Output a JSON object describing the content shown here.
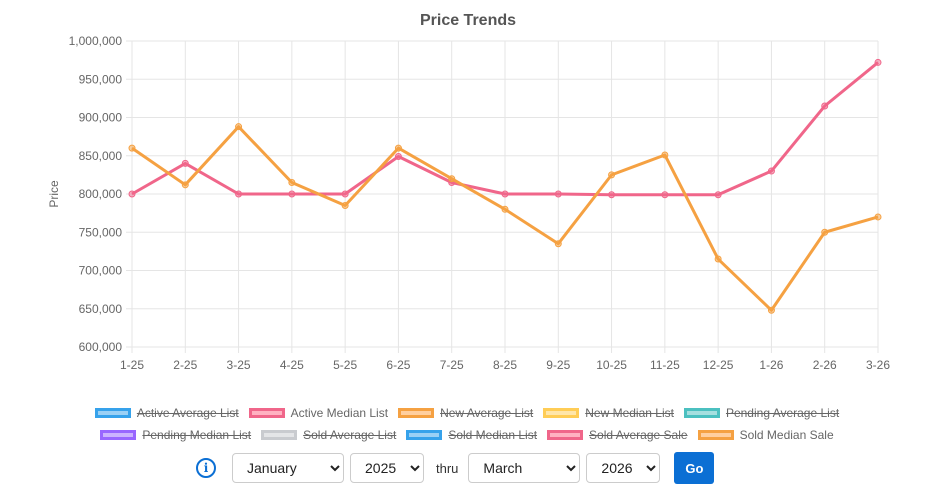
{
  "chart_data": {
    "type": "line",
    "title": "Price Trends",
    "ylabel": "Price",
    "xlabel": "",
    "ylim": [
      600000,
      1000000
    ],
    "yticks": [
      "1,000,000",
      "950,000",
      "900,000",
      "850,000",
      "800,000",
      "750,000",
      "700,000",
      "650,000",
      "600,000"
    ],
    "categories": [
      "1-25",
      "2-25",
      "3-25",
      "4-25",
      "5-25",
      "6-25",
      "7-25",
      "8-25",
      "9-25",
      "10-25",
      "11-25",
      "12-25",
      "1-26",
      "2-26",
      "3-26"
    ],
    "grid": true,
    "legend_position": "bottom",
    "series": [
      {
        "name": "Active Median List",
        "color": "#f0668a",
        "values": [
          800000,
          840000,
          800000,
          800000,
          800000,
          849000,
          815000,
          800000,
          800000,
          799000,
          799000,
          799000,
          830000,
          915000,
          972000
        ]
      },
      {
        "name": "Sold Median Sale",
        "color": "#f5a142",
        "values": [
          860000,
          812000,
          888000,
          815000,
          785000,
          860000,
          820000,
          780000,
          735000,
          825000,
          851000,
          715000,
          648000,
          750000,
          770000
        ]
      }
    ]
  },
  "legend": {
    "row1": [
      {
        "label": "Active Average List",
        "color": "#36a2eb",
        "fill": "#9ad0f5",
        "hidden": true
      },
      {
        "label": "Active Median List",
        "color": "#f0668a",
        "fill": "#ffb1c1",
        "hidden": false
      },
      {
        "label": "New Average List",
        "color": "#f5a142",
        "fill": "#ffcf9f",
        "hidden": true
      },
      {
        "label": "New Median List",
        "color": "#ffcd56",
        "fill": "#ffe6aa",
        "hidden": true
      },
      {
        "label": "Pending Average List",
        "color": "#4bc0c0",
        "fill": "#a5dfdf",
        "hidden": true
      }
    ],
    "row2": [
      {
        "label": "Pending Median List",
        "color": "#9966ff",
        "fill": "#ccb2ff",
        "hidden": true
      },
      {
        "label": "Sold Average List",
        "color": "#c9cbcf",
        "fill": "#e4e5e7",
        "hidden": true
      },
      {
        "label": "Sold Median List",
        "color": "#36a2eb",
        "fill": "#9ad0f5",
        "hidden": true
      },
      {
        "label": "Sold Average Sale",
        "color": "#f0668a",
        "fill": "#ffb1c1",
        "hidden": true
      },
      {
        "label": "Sold Median Sale",
        "color": "#f5a142",
        "fill": "#ffcf9f",
        "hidden": false
      }
    ]
  },
  "controls": {
    "start_month": "January",
    "start_year": "2025",
    "thru_label": "thru",
    "end_month": "March",
    "end_year": "2026",
    "go_label": "Go",
    "info_symbol": "i"
  }
}
